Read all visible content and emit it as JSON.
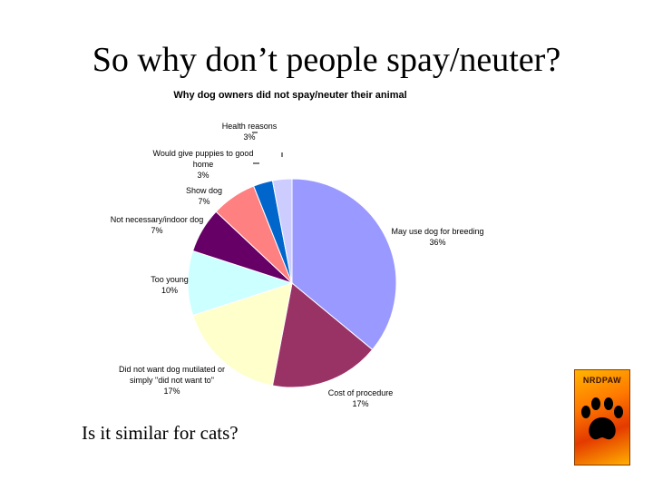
{
  "slide": {
    "title": "So why don’t people spay/neuter?",
    "subtitle": "Is it similar for cats?"
  },
  "logo": {
    "text": "NRDPAW",
    "icon": "paw-print-icon"
  },
  "chart_data": {
    "type": "pie",
    "title": "Why dog owners did not spay/neuter their animal",
    "slices": [
      {
        "label_lines": [
          "May use dog for breeding",
          "36%"
        ],
        "value": 36,
        "color": "#9999ff"
      },
      {
        "label_lines": [
          "Cost of procedure",
          "17%"
        ],
        "value": 17,
        "color": "#993366"
      },
      {
        "label_lines": [
          "Did not want dog mutilated or",
          "simply \"did not want to\"",
          "17%"
        ],
        "value": 17,
        "color": "#ffffcc"
      },
      {
        "label_lines": [
          "Too young",
          "10%"
        ],
        "value": 10,
        "color": "#ccffff"
      },
      {
        "label_lines": [
          "Not necessary/indoor dog",
          "7%"
        ],
        "value": 7,
        "color": "#660066"
      },
      {
        "label_lines": [
          "Show dog",
          "7%"
        ],
        "value": 7,
        "color": "#ff8080"
      },
      {
        "label_lines": [
          "Would give puppies to good",
          "home",
          "3%"
        ],
        "value": 3,
        "color": "#0066cc"
      },
      {
        "label_lines": [
          "Health reasons",
          "3%"
        ],
        "value": 3,
        "color": "#ccccff"
      }
    ]
  }
}
